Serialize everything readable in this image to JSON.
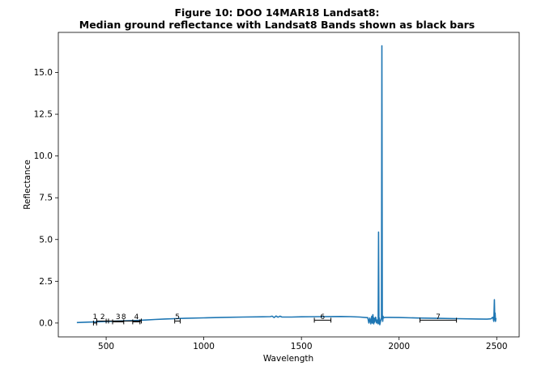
{
  "chart_data": {
    "type": "line",
    "title_line1": "Figure 10: DOO 14MAR18  Landsat8:",
    "title_line2": "Median ground reflectance with Landsat8 Bands shown as black bars",
    "xlabel": "Wavelength",
    "ylabel": "Reflectance",
    "xlim": [
      255,
      2615
    ],
    "ylim": [
      -0.83,
      17.4
    ],
    "x_ticks": [
      500,
      1000,
      1500,
      2000,
      2500
    ],
    "y_ticks": [
      0.0,
      2.5,
      5.0,
      7.5,
      10.0,
      12.5,
      15.0
    ],
    "x_tick_labels": [
      "500",
      "1000",
      "1500",
      "2000",
      "2500"
    ],
    "y_tick_labels": [
      "0.0",
      "2.5",
      "5.0",
      "7.5",
      "10.0",
      "12.5",
      "15.0"
    ],
    "line_color": "#1f77b4",
    "grid": false,
    "series": [
      {
        "x": [
          350,
          400,
          450,
          500,
          550,
          600,
          650,
          700,
          750,
          800,
          850,
          900,
          1000,
          1100,
          1200,
          1300,
          1340,
          1350,
          1360,
          1370,
          1380,
          1390,
          1400,
          1450,
          1500,
          1600,
          1700,
          1750,
          1800,
          1840,
          1845,
          1850,
          1855,
          1860,
          1863,
          1866,
          1870,
          1872,
          1875,
          1880,
          1885,
          1890,
          1893,
          1895,
          1897,
          1899,
          1901,
          1905,
          1910,
          1912,
          1914,
          1916,
          1918,
          1920,
          1925,
          1930,
          1950,
          2000,
          2100,
          2200,
          2300,
          2400,
          2450,
          2470,
          2480,
          2485,
          2488,
          2490,
          2492,
          2494,
          2496
        ],
        "y": [
          0.03,
          0.05,
          0.07,
          0.09,
          0.11,
          0.13,
          0.15,
          0.18,
          0.21,
          0.24,
          0.26,
          0.28,
          0.31,
          0.34,
          0.36,
          0.37,
          0.38,
          0.41,
          0.33,
          0.42,
          0.35,
          0.41,
          0.36,
          0.36,
          0.37,
          0.38,
          0.39,
          0.38,
          0.36,
          0.32,
          0.0,
          0.3,
          -0.05,
          0.4,
          0.0,
          0.5,
          -0.05,
          0.3,
          0.05,
          0.35,
          0.0,
          0.2,
          -0.05,
          5.45,
          0.0,
          0.3,
          -0.1,
          0.1,
          0.3,
          16.6,
          0.35,
          0.1,
          0.4,
          0.3,
          0.33,
          0.34,
          0.34,
          0.33,
          0.3,
          0.28,
          0.26,
          0.24,
          0.23,
          0.25,
          0.35,
          0.1,
          1.4,
          0.2,
          0.6,
          0.1,
          0.3
        ]
      }
    ],
    "bands": [
      {
        "label": "1",
        "x0": 435,
        "x1": 451,
        "y": 0.0
      },
      {
        "label": "2",
        "x0": 452,
        "x1": 512,
        "y": 0.12
      },
      {
        "label": "3",
        "x0": 533,
        "x1": 590,
        "y": 0.07
      },
      {
        "label": "8",
        "x0": 500,
        "x1": 680,
        "y": 0.12
      },
      {
        "label": "4",
        "x0": 636,
        "x1": 673,
        "y": 0.07
      },
      {
        "label": "5",
        "x0": 851,
        "x1": 879,
        "y": 0.12
      },
      {
        "label": "6",
        "x0": 1566,
        "x1": 1651,
        "y": 0.17
      },
      {
        "label": "7",
        "x0": 2107,
        "x1": 2294,
        "y": 0.17
      }
    ],
    "band_label_positions": [
      {
        "text": "1",
        "x": 443
      },
      {
        "text": "2",
        "x": 482
      },
      {
        "text": "3",
        "x": 561
      },
      {
        "text": "8",
        "x": 590
      },
      {
        "text": "4",
        "x": 655
      },
      {
        "text": "5",
        "x": 865
      },
      {
        "text": "6",
        "x": 1608
      },
      {
        "text": "7",
        "x": 2200
      }
    ],
    "band_color": "#000000"
  }
}
